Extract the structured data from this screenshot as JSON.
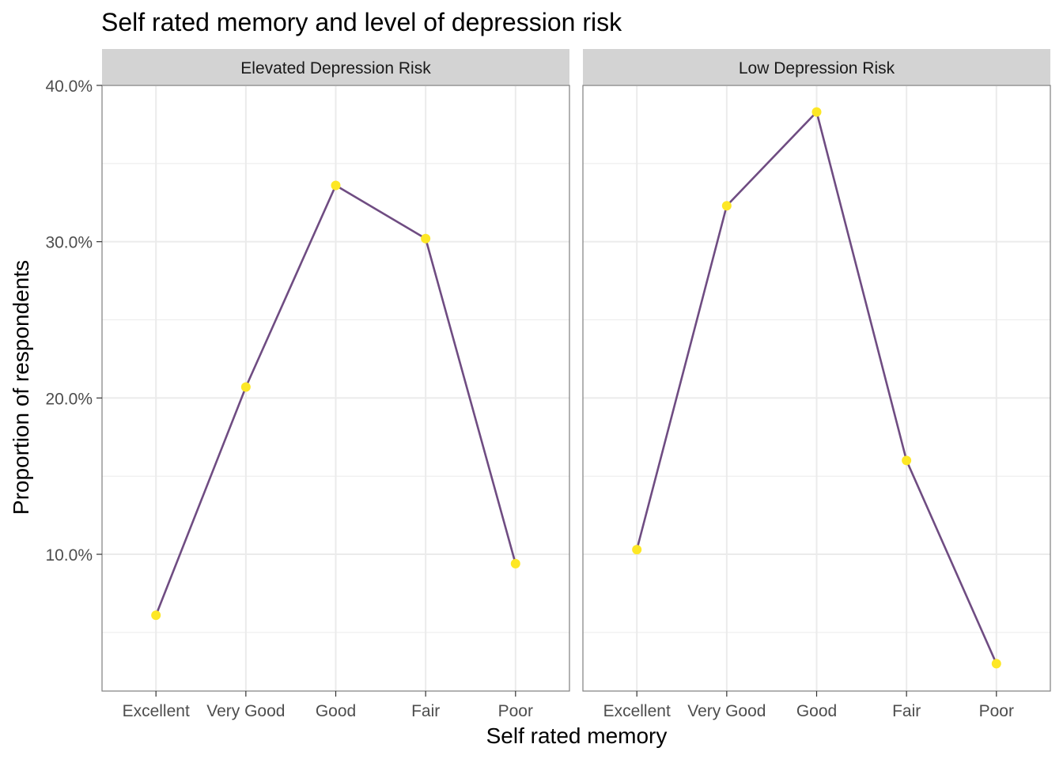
{
  "chart_data": {
    "type": "line",
    "title": "Self rated memory and level of depression risk",
    "xlabel": "Self rated memory",
    "ylabel": "Proportion of respondents",
    "categories": [
      "Excellent",
      "Very Good",
      "Good",
      "Fair",
      "Poor"
    ],
    "y_ticks": [
      {
        "value": 0.1,
        "label": "10.0%"
      },
      {
        "value": 0.2,
        "label": "20.0%"
      },
      {
        "value": 0.3,
        "label": "30.0%"
      },
      {
        "value": 0.4,
        "label": "40.0%"
      }
    ],
    "ylim": [
      0.0125,
      0.4
    ],
    "grid": true,
    "legend": "none",
    "colors": {
      "line": "#6F4C82",
      "point": "#FDE725",
      "strip_background": "#D3D3D3",
      "panel_border": "#7F7F7F",
      "grid": "#EBEBEB"
    },
    "panels": [
      {
        "strip": "Elevated Depression Risk",
        "values": [
          0.061,
          0.207,
          0.336,
          0.302,
          0.094
        ]
      },
      {
        "strip": "Low Depression Risk",
        "values": [
          0.103,
          0.323,
          0.383,
          0.16,
          0.03
        ]
      }
    ]
  }
}
